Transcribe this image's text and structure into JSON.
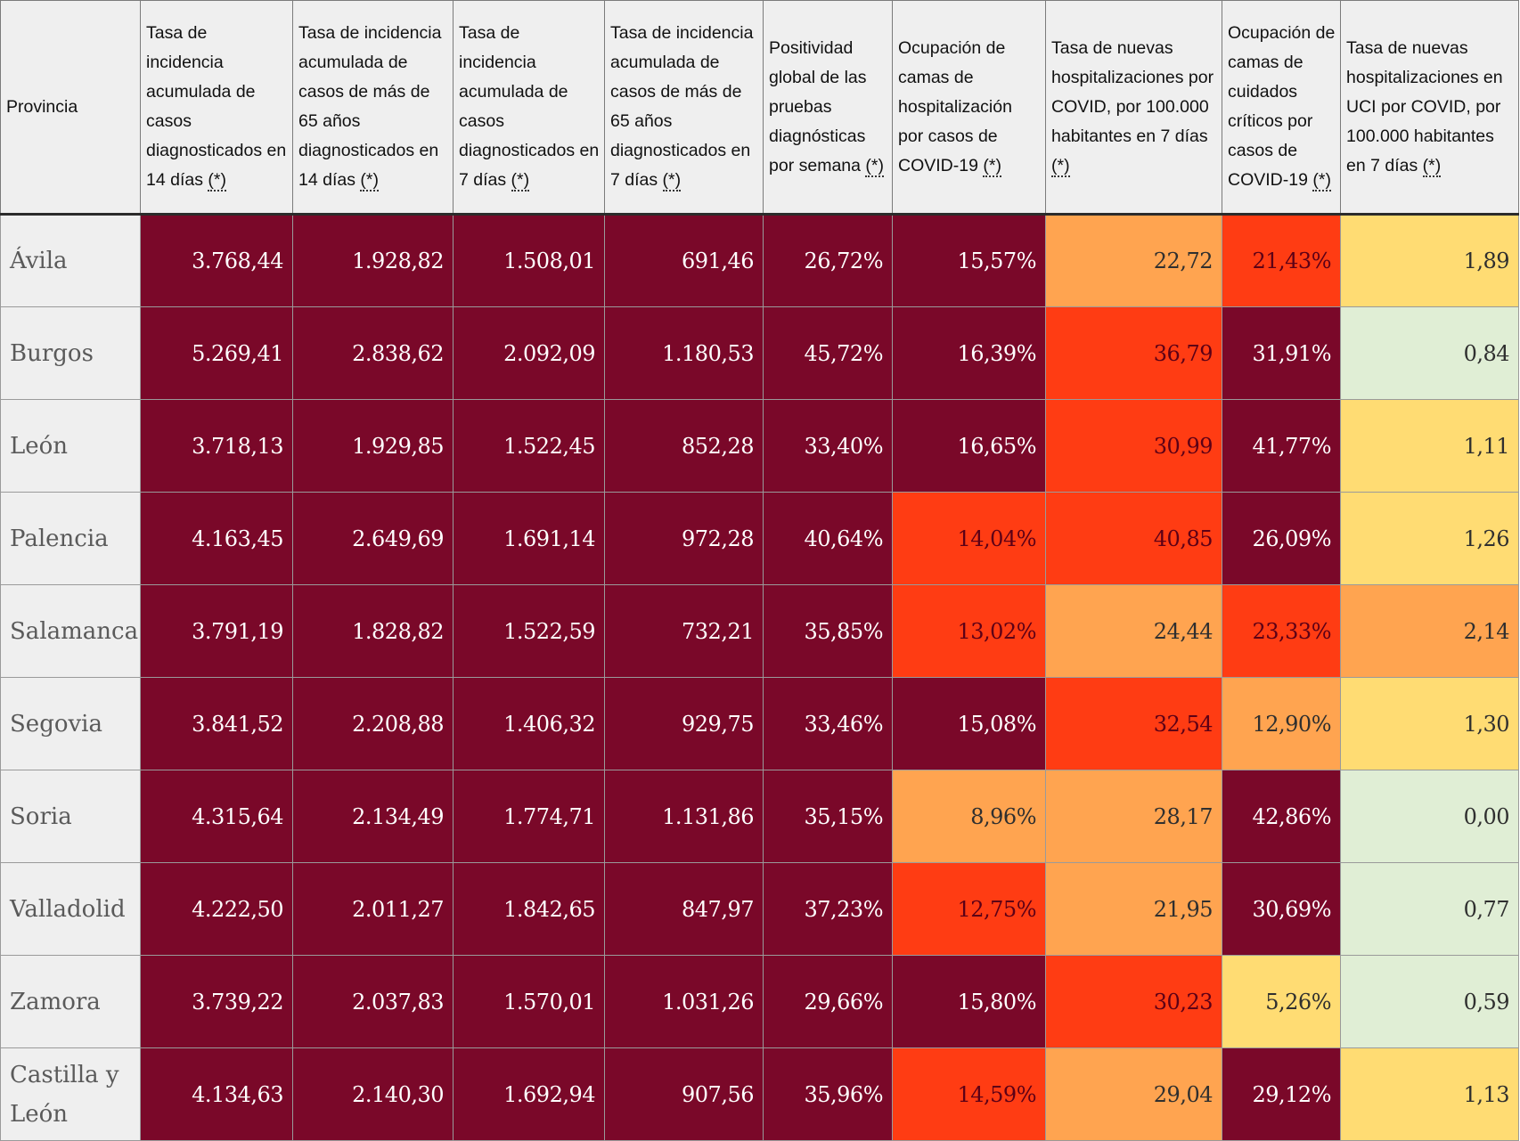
{
  "table": {
    "headers": [
      {
        "text": "Provincia",
        "note": ""
      },
      {
        "text": "Tasa de incidencia acumulada de casos diagnosticados en 14 días",
        "note": "(*)"
      },
      {
        "text": "Tasa de incidencia acumulada de casos de más de 65 años diagnosticados en 14 días",
        "note": "(*)"
      },
      {
        "text": "Tasa de incidencia acumulada de casos diagnosticados en 7 días",
        "note": "(*)"
      },
      {
        "text": "Tasa de incidencia acumulada de casos de más de 65 años diagnosticados en 7 días",
        "note": "(*)"
      },
      {
        "text": "Positividad global de las pruebas diagnósticas por semana",
        "note": "(*)"
      },
      {
        "text": "Ocupación de camas de hospitalización por casos de COVID-19",
        "note": "(*)"
      },
      {
        "text": "Tasa de nuevas hospitalizaciones por COVID, por 100.000 habitantes en 7 días",
        "note": "(*)"
      },
      {
        "text": "Ocupación de camas de cuidados críticos por casos de COVID-19",
        "note": "(*)"
      },
      {
        "text": "Tasa de nuevas hospitalizaciones en UCI por COVID, por 100.000 habitantes en 7 días",
        "note": "(*)"
      }
    ],
    "colors": {
      "dark": "#7a0829",
      "red": "#ff3c13",
      "orange": "#ffa450",
      "yellow": "#ffdc73",
      "green": "#e0eed5",
      "province_bg": "#efefef"
    },
    "rows": [
      {
        "province": "Ávila",
        "values": [
          "3.768,44",
          "1.928,82",
          "1.508,01",
          "691,46",
          "26,72%",
          "15,57%",
          "22,72",
          "21,43%",
          "1,89"
        ],
        "levels": [
          "dark",
          "dark",
          "dark",
          "dark",
          "dark",
          "dark",
          "orange",
          "red",
          "yellow"
        ]
      },
      {
        "province": "Burgos",
        "values": [
          "5.269,41",
          "2.838,62",
          "2.092,09",
          "1.180,53",
          "45,72%",
          "16,39%",
          "36,79",
          "31,91%",
          "0,84"
        ],
        "levels": [
          "dark",
          "dark",
          "dark",
          "dark",
          "dark",
          "dark",
          "red",
          "dark",
          "green"
        ]
      },
      {
        "province": "León",
        "values": [
          "3.718,13",
          "1.929,85",
          "1.522,45",
          "852,28",
          "33,40%",
          "16,65%",
          "30,99",
          "41,77%",
          "1,11"
        ],
        "levels": [
          "dark",
          "dark",
          "dark",
          "dark",
          "dark",
          "dark",
          "red",
          "dark",
          "yellow"
        ]
      },
      {
        "province": "Palencia",
        "values": [
          "4.163,45",
          "2.649,69",
          "1.691,14",
          "972,28",
          "40,64%",
          "14,04%",
          "40,85",
          "26,09%",
          "1,26"
        ],
        "levels": [
          "dark",
          "dark",
          "dark",
          "dark",
          "dark",
          "red",
          "red",
          "dark",
          "yellow"
        ]
      },
      {
        "province": "Salamanca",
        "values": [
          "3.791,19",
          "1.828,82",
          "1.522,59",
          "732,21",
          "35,85%",
          "13,02%",
          "24,44",
          "23,33%",
          "2,14"
        ],
        "levels": [
          "dark",
          "dark",
          "dark",
          "dark",
          "dark",
          "red",
          "orange",
          "red",
          "orange"
        ]
      },
      {
        "province": "Segovia",
        "values": [
          "3.841,52",
          "2.208,88",
          "1.406,32",
          "929,75",
          "33,46%",
          "15,08%",
          "32,54",
          "12,90%",
          "1,30"
        ],
        "levels": [
          "dark",
          "dark",
          "dark",
          "dark",
          "dark",
          "dark",
          "red",
          "orange",
          "yellow"
        ]
      },
      {
        "province": "Soria",
        "values": [
          "4.315,64",
          "2.134,49",
          "1.774,71",
          "1.131,86",
          "35,15%",
          "8,96%",
          "28,17",
          "42,86%",
          "0,00"
        ],
        "levels": [
          "dark",
          "dark",
          "dark",
          "dark",
          "dark",
          "orange",
          "orange",
          "dark",
          "green"
        ]
      },
      {
        "province": "Valladolid",
        "values": [
          "4.222,50",
          "2.011,27",
          "1.842,65",
          "847,97",
          "37,23%",
          "12,75%",
          "21,95",
          "30,69%",
          "0,77"
        ],
        "levels": [
          "dark",
          "dark",
          "dark",
          "dark",
          "dark",
          "red",
          "orange",
          "dark",
          "green"
        ]
      },
      {
        "province": "Zamora",
        "values": [
          "3.739,22",
          "2.037,83",
          "1.570,01",
          "1.031,26",
          "29,66%",
          "15,80%",
          "30,23",
          "5,26%",
          "0,59"
        ],
        "levels": [
          "dark",
          "dark",
          "dark",
          "dark",
          "dark",
          "dark",
          "red",
          "yellow",
          "green"
        ]
      },
      {
        "province": "Castilla y León",
        "values": [
          "4.134,63",
          "2.140,30",
          "1.692,94",
          "907,56",
          "35,96%",
          "14,59%",
          "29,04",
          "29,12%",
          "1,13"
        ],
        "levels": [
          "dark",
          "dark",
          "dark",
          "dark",
          "dark",
          "red",
          "orange",
          "dark",
          "yellow"
        ]
      }
    ]
  }
}
